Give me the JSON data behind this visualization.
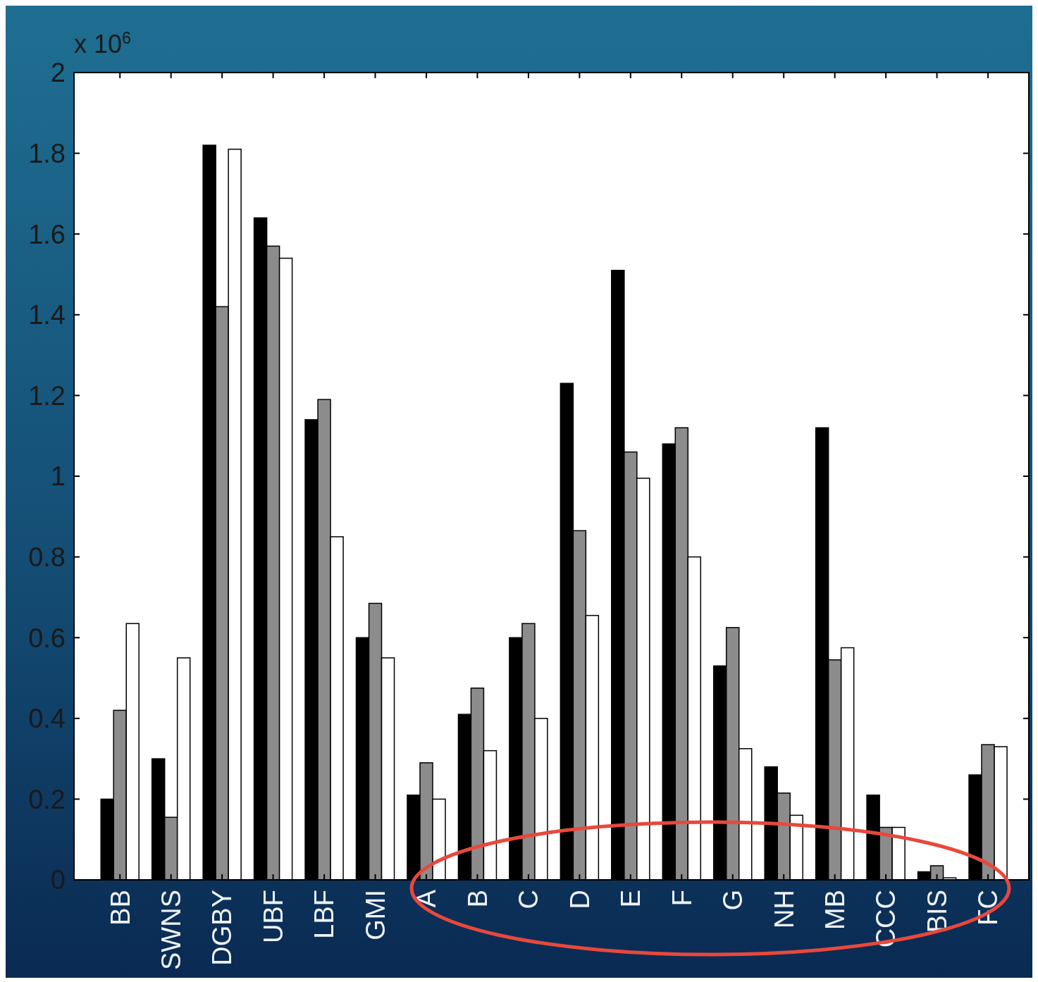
{
  "chart_data": {
    "type": "bar",
    "categories": [
      "BB",
      "SWNS",
      "DGBY",
      "UBF",
      "LBF",
      "GMI",
      "A",
      "B",
      "C",
      "D",
      "E",
      "F",
      "G",
      "NH",
      "MB",
      "CCC",
      "BIS",
      "FC"
    ],
    "series": [
      {
        "color": "#000000",
        "values": [
          0.2,
          0.3,
          1.82,
          1.64,
          1.14,
          0.6,
          0.21,
          0.41,
          0.6,
          1.23,
          1.51,
          1.08,
          0.53,
          0.28,
          1.12,
          0.21,
          0.02,
          0.26
        ]
      },
      {
        "color": "#8c8c8c",
        "values": [
          0.42,
          0.155,
          1.42,
          1.57,
          1.19,
          0.685,
          0.29,
          0.475,
          0.635,
          0.865,
          1.06,
          1.12,
          0.625,
          0.215,
          0.545,
          0.13,
          0.035,
          0.335
        ]
      },
      {
        "color": "#ffffff",
        "values": [
          0.635,
          0.55,
          1.81,
          1.54,
          0.85,
          0.55,
          0.2,
          0.32,
          0.4,
          0.655,
          0.995,
          0.8,
          0.325,
          0.16,
          0.575,
          0.13,
          0.005,
          0.33
        ]
      }
    ],
    "ylim": [
      0,
      2
    ],
    "yticks": [
      0,
      0.2,
      0.4,
      0.6,
      0.8,
      1,
      1.2,
      1.4,
      1.6,
      1.8,
      2
    ],
    "annotations": [
      "x 10$^{6}$"
    ],
    "grid": false
  }
}
